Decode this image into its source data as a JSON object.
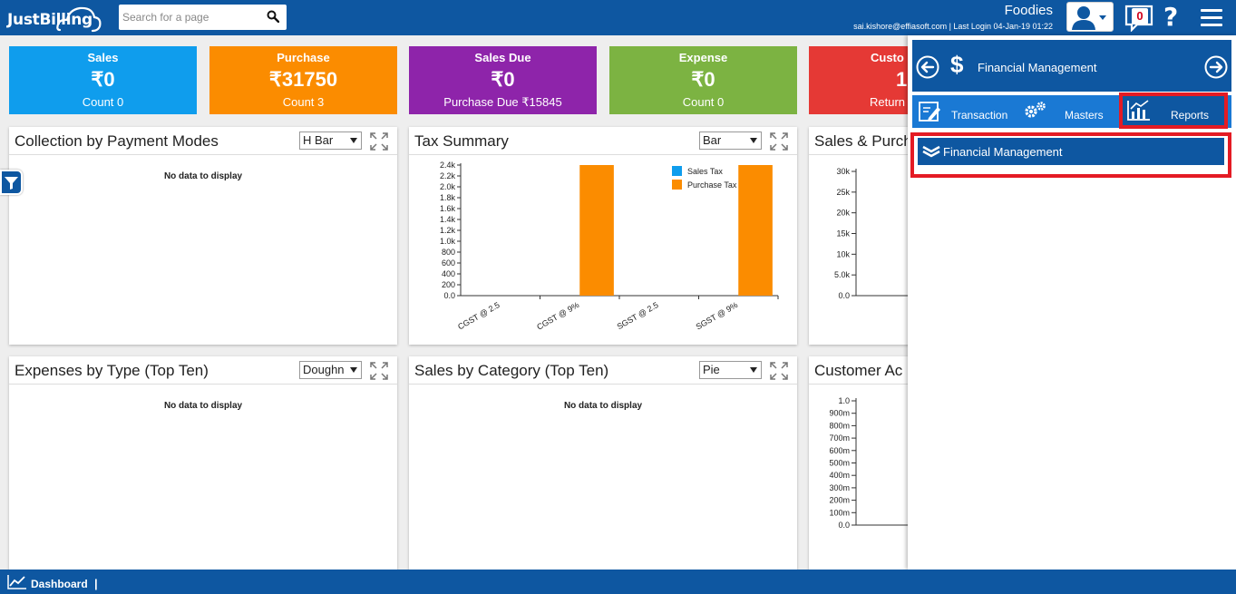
{
  "header": {
    "logo_text": "JustBilling",
    "search_placeholder": "Search for a page",
    "org_name": "Foodies",
    "user_line": "sai.kishore@effiasoft.com | Last Login 04-Jan-19 01:22",
    "notification_count": "0",
    "help_label": "?"
  },
  "cards": [
    {
      "title": "Sales",
      "value": "₹0",
      "sub": "Count 0",
      "color": "#0f9ded"
    },
    {
      "title": "Purchase",
      "value": "₹31750",
      "sub": "Count 3",
      "color": "#fb8c00"
    },
    {
      "title": "Sales Due",
      "value": "₹0",
      "sub": "Purchase Due ₹15845",
      "color": "#8e24aa"
    },
    {
      "title": "Expense",
      "value": "₹0",
      "sub": "Count 0",
      "color": "#7cb342"
    },
    {
      "title": "Custo",
      "value": "1",
      "sub": "Return",
      "color": "#e53935"
    }
  ],
  "panels": {
    "collection": {
      "title": "Collection by Payment Modes",
      "select": "H Bar",
      "no_data": "No data to display"
    },
    "tax": {
      "title": "Tax Summary",
      "select": "Bar"
    },
    "sales_purchase": {
      "title": "Sales & Purch"
    },
    "expenses": {
      "title": "Expenses by Type (Top Ten)",
      "select": "Doughn",
      "no_data": "No data to display"
    },
    "category": {
      "title": "Sales by Category (Top Ten)",
      "select": "Pie",
      "no_data": "No data to display"
    },
    "customer": {
      "title": "Customer Ac"
    }
  },
  "chart_data": [
    {
      "type": "bar",
      "categories": [
        "CGST @ 2.5",
        "CGST @ 9%",
        "SGST @ 2.5",
        "SGST @ 9%"
      ],
      "series": [
        {
          "name": "Sales Tax",
          "values": [
            0,
            0,
            0,
            0
          ],
          "color": "#0f9ded"
        },
        {
          "name": "Purchase Tax",
          "values": [
            0,
            2400,
            0,
            2400
          ],
          "color": "#fb8c00"
        }
      ],
      "yticks": [
        "0.0",
        "200",
        "400",
        "600",
        "800",
        "1.0k",
        "1.2k",
        "1.4k",
        "1.6k",
        "1.8k",
        "2.0k",
        "2.2k",
        "2.4k"
      ],
      "ylim": [
        0,
        2400
      ],
      "legend": "top-right"
    },
    {
      "type": "line",
      "yticks": [
        "0.0",
        "5.0k",
        "10k",
        "15k",
        "20k",
        "25k",
        "30k"
      ],
      "ylim": [
        0,
        30000
      ]
    },
    {
      "type": "line",
      "yticks": [
        "0.0",
        "100m",
        "200m",
        "300m",
        "400m",
        "500m",
        "600m",
        "700m",
        "800m",
        "900m",
        "1.0"
      ],
      "ylim": [
        0,
        1
      ]
    }
  ],
  "sidepanel": {
    "title": "Financial Management",
    "tabs": {
      "transaction": "Transaction",
      "masters": "Masters",
      "reports": "Reports"
    },
    "section": "Financial Management"
  },
  "footer": {
    "label": "Dashboard",
    "separator": "|"
  },
  "colors": {
    "brand": "#0e57a1",
    "highlight": "#e41b24"
  }
}
